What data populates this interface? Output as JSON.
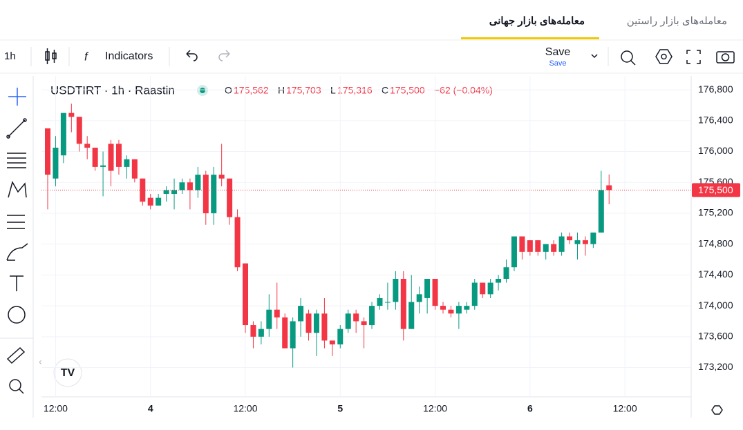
{
  "tabs": [
    "معامله‌های بازار راستین",
    "معامله‌های بازار جهانی"
  ],
  "toolbar": {
    "interval": "1h",
    "indicators": "Indicators",
    "save": "Save",
    "save_sub": "Save"
  },
  "legend": {
    "symbol": "USDTIRT · 1h · Raastin",
    "o_label": "O",
    "o": "175,562",
    "h_label": "H",
    "h": "175,703",
    "l_label": "L",
    "l": "175,316",
    "c_label": "C",
    "c": "175,500",
    "change": "−62 (−0.04%)"
  },
  "chart_data": {
    "type": "candlestick",
    "up_color": "#089981",
    "down_color": "#f23645",
    "open": [
      176300,
      175650,
      175950,
      176500,
      176450,
      176100,
      176050,
      175800,
      176100,
      176100,
      175800,
      175900,
      175650,
      175400,
      175300,
      175450,
      175450,
      175500,
      175600,
      175500,
      175700,
      175200,
      175700,
      175650,
      175150,
      174550,
      173750,
      173600,
      173700,
      173950,
      173850,
      173450,
      173800,
      173900,
      173650,
      173900,
      173550,
      173500,
      173700,
      173900,
      173800,
      173750,
      174000,
      174050,
      174050,
      174350,
      173700,
      174050,
      174100,
      174350,
      174000,
      173950,
      173900,
      173950,
      174000,
      174300,
      174150,
      174300,
      174350,
      174500,
      174900,
      174850,
      174850,
      174700,
      174800,
      174700,
      174900,
      174800,
      174850,
      174800,
      174950,
      175562
    ],
    "high": [
      176300,
      176200,
      176500,
      176620,
      176450,
      176200,
      176050,
      176000,
      176150,
      176150,
      175950,
      175900,
      175650,
      175450,
      175450,
      175550,
      175650,
      175650,
      175650,
      175800,
      175750,
      175800,
      176100,
      175650,
      175250,
      174550,
      173800,
      173800,
      174150,
      174300,
      173900,
      173850,
      174100,
      173950,
      173950,
      174100,
      173550,
      173750,
      173950,
      173950,
      173850,
      174050,
      174150,
      174300,
      174450,
      174450,
      174400,
      174250,
      174350,
      174350,
      174050,
      174000,
      174050,
      174050,
      174350,
      174300,
      174350,
      174400,
      174600,
      174900,
      174900,
      174850,
      174850,
      174800,
      174850,
      174950,
      174950,
      174950,
      174900,
      174950,
      175750,
      175703
    ],
    "low": [
      175250,
      175550,
      175850,
      176250,
      176000,
      175900,
      175750,
      175420,
      175550,
      175700,
      175650,
      175600,
      175300,
      175250,
      175300,
      175350,
      175250,
      175450,
      175250,
      175400,
      175050,
      175050,
      175550,
      175050,
      174450,
      173650,
      173450,
      173500,
      173600,
      173700,
      173450,
      173200,
      173600,
      173550,
      173350,
      173450,
      173350,
      173450,
      173650,
      173650,
      173450,
      173700,
      173950,
      173950,
      173950,
      173550,
      173700,
      173900,
      173900,
      173950,
      173900,
      173850,
      173700,
      173900,
      173950,
      174100,
      174100,
      174200,
      174300,
      174450,
      174600,
      174650,
      174650,
      174600,
      174650,
      174650,
      174800,
      174600,
      174650,
      174750,
      174950,
      175316
    ],
    "close": [
      175700,
      176050,
      176500,
      176450,
      176100,
      176050,
      175800,
      175820,
      175750,
      175800,
      175900,
      175650,
      175350,
      175300,
      175400,
      175500,
      175500,
      175600,
      175500,
      175700,
      175200,
      175700,
      175650,
      175150,
      174500,
      173750,
      173600,
      173700,
      173950,
      173850,
      173450,
      173800,
      174000,
      173650,
      173900,
      173550,
      173500,
      173700,
      173900,
      173800,
      173750,
      174000,
      174100,
      174050,
      174350,
      173700,
      174050,
      174150,
      174350,
      174000,
      173950,
      173900,
      174000,
      174000,
      174300,
      174150,
      174300,
      174350,
      174500,
      174900,
      174700,
      174700,
      174700,
      174800,
      174700,
      174900,
      174850,
      174850,
      174800,
      174950,
      175500,
      175500
    ],
    "ylim": [
      172820,
      176980
    ],
    "yticks": [
      {
        "value": 173200,
        "label": "173,200"
      },
      {
        "value": 173600,
        "label": "173,600"
      },
      {
        "value": 174000,
        "label": "174,000"
      },
      {
        "value": 174400,
        "label": "174,400"
      },
      {
        "value": 174800,
        "label": "174,800"
      },
      {
        "value": 175200,
        "label": "175,200"
      },
      {
        "value": 175600,
        "label": "175,600"
      },
      {
        "value": 176000,
        "label": "176,000"
      },
      {
        "value": 176400,
        "label": "176,400"
      },
      {
        "value": 176800,
        "label": "176,800"
      }
    ],
    "xticks": [
      {
        "value": 1,
        "label": "12:00"
      },
      {
        "value": 13,
        "label": "4"
      },
      {
        "value": 25,
        "label": "12:00"
      },
      {
        "value": 37,
        "label": "5"
      },
      {
        "value": 49,
        "label": "12:00"
      },
      {
        "value": 61,
        "label": "6"
      },
      {
        "value": 73,
        "label": "12:00"
      }
    ],
    "last_price": {
      "value": 175500,
      "label": "175,500"
    }
  }
}
